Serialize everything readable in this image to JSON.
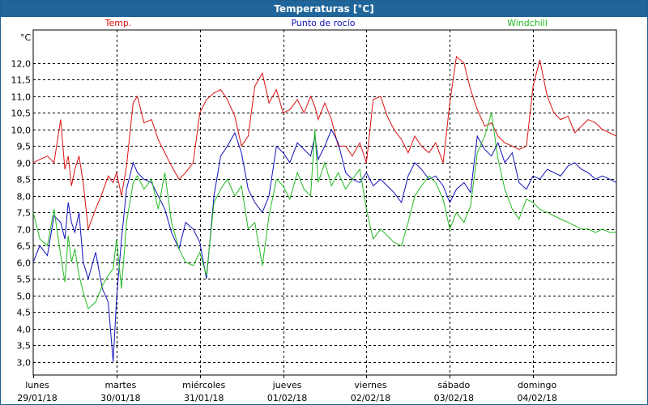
{
  "window": {
    "title": "Temperaturas [°C]"
  },
  "chart_data": {
    "type": "line",
    "title": "Temperaturas [°C]",
    "ylabel": "°C",
    "ylim": [
      2.6,
      13.0
    ],
    "yticks": [
      "3,0",
      "3,5",
      "4,0",
      "4,5",
      "5,0",
      "5,5",
      "6,0",
      "6,5",
      "7,0",
      "7,5",
      "8,0",
      "8,5",
      "9,0",
      "9,5",
      "10,0",
      "10,5",
      "11,0",
      "11,5",
      "12,0"
    ],
    "xlim": [
      0,
      7
    ],
    "days": [
      {
        "weekday": "lunes",
        "date": "29/01/18",
        "x": 0
      },
      {
        "weekday": "martes",
        "date": "30/01/18",
        "x": 1
      },
      {
        "weekday": "miércoles",
        "date": "31/01/18",
        "x": 2
      },
      {
        "weekday": "jueves",
        "date": "01/02/18",
        "x": 3
      },
      {
        "weekday": "viernes",
        "date": "02/02/18",
        "x": 4
      },
      {
        "weekday": "sábado",
        "date": "03/02/18",
        "x": 5
      },
      {
        "weekday": "domingo",
        "date": "04/02/18",
        "x": 6
      }
    ],
    "grid": true,
    "series": [
      {
        "name": "Temp.",
        "color": "#dd1111",
        "x": [
          0,
          0.08,
          0.17,
          0.25,
          0.33,
          0.38,
          0.42,
          0.46,
          0.5,
          0.55,
          0.6,
          0.66,
          0.75,
          0.83,
          0.9,
          0.96,
          1.0,
          1.06,
          1.12,
          1.2,
          1.25,
          1.33,
          1.42,
          1.5,
          1.58,
          1.66,
          1.75,
          1.83,
          1.92,
          2.0,
          2.08,
          2.17,
          2.25,
          2.33,
          2.42,
          2.5,
          2.58,
          2.66,
          2.75,
          2.83,
          2.92,
          3.0,
          3.08,
          3.17,
          3.25,
          3.33,
          3.38,
          3.42,
          3.5,
          3.58,
          3.66,
          3.75,
          3.83,
          3.92,
          4.0,
          4.08,
          4.17,
          4.25,
          4.33,
          4.42,
          4.5,
          4.58,
          4.66,
          4.75,
          4.83,
          4.92,
          5.0,
          5.08,
          5.17,
          5.25,
          5.33,
          5.42,
          5.5,
          5.58,
          5.66,
          5.75,
          5.83,
          5.92,
          6.0,
          6.08,
          6.17,
          6.25,
          6.33,
          6.42,
          6.5,
          6.58,
          6.66,
          6.75,
          6.83,
          6.92,
          7.0
        ],
        "values": [
          9.0,
          9.1,
          9.2,
          9.0,
          10.3,
          8.8,
          9.2,
          8.3,
          8.8,
          9.2,
          8.4,
          7.0,
          7.6,
          8.1,
          8.6,
          8.4,
          8.7,
          8.0,
          8.9,
          10.8,
          11.0,
          10.2,
          10.3,
          9.7,
          9.3,
          8.9,
          8.5,
          8.7,
          9.0,
          10.5,
          10.9,
          11.1,
          11.2,
          10.9,
          10.4,
          9.5,
          9.8,
          11.3,
          11.7,
          10.8,
          11.2,
          10.5,
          10.6,
          10.9,
          10.5,
          11.0,
          10.7,
          10.3,
          10.8,
          10.3,
          9.5,
          9.5,
          9.2,
          9.6,
          9.0,
          10.9,
          11.0,
          10.4,
          10.0,
          9.7,
          9.3,
          9.8,
          9.5,
          9.3,
          9.6,
          9.0,
          10.8,
          12.2,
          12.0,
          11.2,
          10.6,
          10.1,
          10.2,
          9.8,
          9.6,
          9.5,
          9.4,
          9.5,
          11.3,
          12.1,
          11.0,
          10.5,
          10.3,
          10.4,
          9.9,
          10.1,
          10.3,
          10.2,
          10.0,
          9.9,
          9.8
        ]
      },
      {
        "name": "Punto de rocío",
        "color": "#1111bb",
        "x": [
          0,
          0.08,
          0.17,
          0.25,
          0.33,
          0.38,
          0.42,
          0.46,
          0.5,
          0.55,
          0.6,
          0.66,
          0.75,
          0.83,
          0.9,
          0.96,
          1.0,
          1.06,
          1.12,
          1.2,
          1.25,
          1.33,
          1.42,
          1.5,
          1.58,
          1.66,
          1.75,
          1.83,
          1.92,
          2.0,
          2.08,
          2.17,
          2.25,
          2.33,
          2.42,
          2.5,
          2.58,
          2.66,
          2.75,
          2.83,
          2.92,
          3.0,
          3.08,
          3.17,
          3.25,
          3.33,
          3.38,
          3.42,
          3.5,
          3.58,
          3.66,
          3.75,
          3.83,
          3.92,
          4.0,
          4.08,
          4.17,
          4.25,
          4.33,
          4.42,
          4.5,
          4.58,
          4.66,
          4.75,
          4.83,
          4.92,
          5.0,
          5.08,
          5.17,
          5.25,
          5.33,
          5.42,
          5.5,
          5.58,
          5.66,
          5.75,
          5.83,
          5.92,
          6.0,
          6.08,
          6.17,
          6.25,
          6.33,
          6.42,
          6.5,
          6.58,
          6.66,
          6.75,
          6.83,
          6.92,
          7.0
        ],
        "values": [
          6.0,
          6.5,
          6.2,
          7.4,
          7.2,
          6.7,
          7.8,
          7.2,
          6.9,
          7.5,
          6.0,
          5.5,
          6.3,
          5.2,
          4.8,
          3.0,
          4.9,
          6.7,
          8.2,
          9.0,
          8.7,
          8.5,
          8.4,
          8.0,
          7.6,
          6.9,
          6.4,
          7.2,
          7.0,
          6.6,
          5.5,
          8.0,
          9.2,
          9.5,
          9.9,
          9.3,
          8.2,
          7.8,
          7.5,
          8.0,
          9.5,
          9.3,
          9.0,
          9.6,
          9.4,
          9.2,
          9.8,
          9.1,
          9.5,
          10.0,
          9.6,
          8.7,
          8.5,
          8.4,
          8.7,
          8.3,
          8.5,
          8.3,
          8.1,
          7.8,
          8.6,
          9.0,
          8.8,
          8.5,
          8.6,
          8.3,
          7.8,
          8.2,
          8.4,
          8.1,
          9.8,
          9.4,
          9.2,
          9.6,
          9.0,
          9.3,
          8.4,
          8.2,
          8.6,
          8.5,
          8.8,
          8.7,
          8.6,
          8.9,
          9.0,
          8.8,
          8.7,
          8.5,
          8.6,
          8.5,
          8.4
        ]
      },
      {
        "name": "Windchill",
        "color": "#22bb22",
        "x": [
          0,
          0.08,
          0.17,
          0.25,
          0.33,
          0.38,
          0.42,
          0.46,
          0.5,
          0.55,
          0.6,
          0.66,
          0.75,
          0.83,
          0.9,
          0.96,
          1.0,
          1.06,
          1.12,
          1.2,
          1.25,
          1.33,
          1.42,
          1.5,
          1.58,
          1.66,
          1.75,
          1.83,
          1.92,
          2.0,
          2.08,
          2.17,
          2.25,
          2.33,
          2.42,
          2.5,
          2.58,
          2.66,
          2.75,
          2.83,
          2.92,
          3.0,
          3.08,
          3.17,
          3.25,
          3.33,
          3.38,
          3.42,
          3.5,
          3.58,
          3.66,
          3.75,
          3.83,
          3.92,
          4.0,
          4.08,
          4.17,
          4.25,
          4.33,
          4.42,
          4.5,
          4.58,
          4.66,
          4.75,
          4.83,
          4.92,
          5.0,
          5.08,
          5.17,
          5.25,
          5.33,
          5.42,
          5.5,
          5.58,
          5.66,
          5.75,
          5.83,
          5.92,
          6.0,
          6.08,
          6.17,
          6.25,
          6.33,
          6.42,
          6.5,
          6.58,
          6.66,
          6.75,
          6.83,
          6.92,
          7.0
        ],
        "values": [
          7.5,
          6.7,
          6.5,
          7.6,
          6.2,
          5.4,
          6.8,
          6.0,
          6.4,
          5.6,
          5.1,
          4.6,
          4.8,
          5.3,
          5.6,
          5.8,
          6.7,
          5.2,
          7.2,
          8.4,
          8.6,
          8.2,
          8.5,
          7.6,
          8.7,
          7.2,
          6.4,
          6.0,
          5.9,
          6.3,
          5.6,
          7.8,
          8.2,
          8.5,
          8.0,
          8.3,
          7.0,
          7.2,
          5.9,
          7.4,
          8.5,
          8.3,
          7.9,
          8.7,
          8.2,
          8.0,
          10.0,
          8.4,
          9.0,
          8.3,
          8.7,
          8.2,
          8.5,
          8.8,
          7.6,
          6.7,
          7.0,
          6.8,
          6.6,
          6.5,
          7.2,
          8.0,
          8.3,
          8.6,
          8.4,
          7.9,
          7.0,
          7.5,
          7.2,
          7.7,
          9.3,
          9.8,
          10.5,
          9.1,
          8.2,
          7.6,
          7.3,
          7.9,
          7.8,
          7.6,
          7.5,
          7.4,
          7.3,
          7.2,
          7.1,
          7.0,
          7.0,
          6.9,
          7.0,
          6.9,
          6.9
        ]
      }
    ]
  }
}
